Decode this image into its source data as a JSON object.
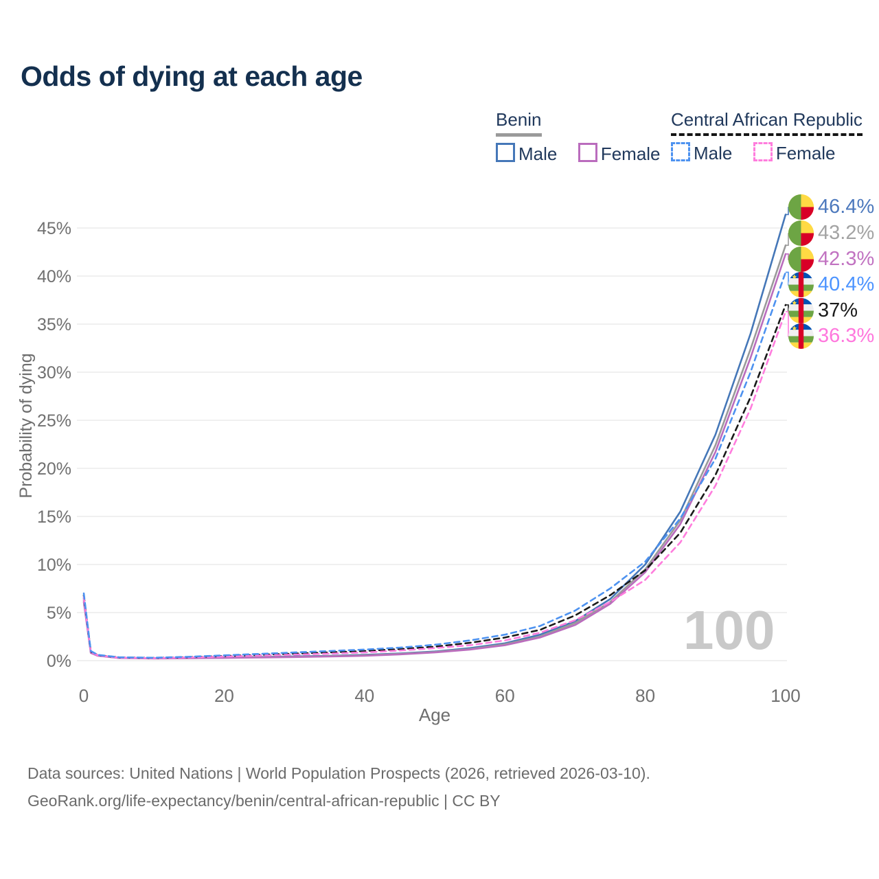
{
  "title": "Odds of dying at each age",
  "legend": {
    "groups": [
      {
        "label": "Benin",
        "underline_style": "solid",
        "underline_color": "#9a9a9a",
        "items": [
          {
            "label": "Male",
            "color": "#4577b8",
            "dashed": false
          },
          {
            "label": "Female",
            "color": "#ba6cbd",
            "dashed": false
          }
        ]
      },
      {
        "label": "Central African Republic",
        "underline_style": "dashed",
        "underline_color": "#151515",
        "items": [
          {
            "label": "Male",
            "color": "#4d92f0",
            "dashed": true
          },
          {
            "label": "Female",
            "color": "#ff7ddd",
            "dashed": true
          }
        ]
      }
    ]
  },
  "end_labels": [
    {
      "value": "46.4%",
      "color": "#4d79bd",
      "flag": "benin-flag-icon"
    },
    {
      "value": "43.2%",
      "color": "#a3a3a3",
      "flag": "benin-flag-icon"
    },
    {
      "value": "42.3%",
      "color": "#c172c1",
      "flag": "benin-flag-icon"
    },
    {
      "value": "40.4%",
      "color": "#4d94ff",
      "flag": "car-flag-icon"
    },
    {
      "value": "37%",
      "color": "#1a1a1a",
      "flag": "car-flag-icon"
    },
    {
      "value": "36.3%",
      "color": "#ff77dd",
      "flag": "car-flag-icon"
    }
  ],
  "watermark": "100",
  "footer": {
    "line1": "Data sources: United Nations | World Population Prospects (2026, retrieved 2026-03-10).",
    "line2": "GeoRank.org/life-expectancy/benin/central-african-republic | CC BY"
  },
  "flag_colors": {
    "green": "#6da544",
    "yellow": "#ffda44",
    "red": "#d80027",
    "blue": "#0052b4",
    "white": "#f0f0f0"
  },
  "chart_data": {
    "type": "line",
    "title": "Odds of dying at each age",
    "xlabel": "Age",
    "ylabel": "Probability of dying",
    "xlim": [
      0,
      100
    ],
    "ylim": [
      0,
      48
    ],
    "grid": "horizontal-only",
    "x_ticks": [
      0,
      20,
      40,
      60,
      80,
      100
    ],
    "x_tick_labels": [
      "0",
      "20",
      "40",
      "60",
      "80",
      "100"
    ],
    "y_ticks": [
      0,
      5,
      10,
      15,
      20,
      25,
      30,
      35,
      40,
      45
    ],
    "y_tick_labels": [
      "0%",
      "5%",
      "10%",
      "15%",
      "20%",
      "25%",
      "30%",
      "35%",
      "40%",
      "45%"
    ],
    "x": [
      0,
      1,
      2,
      5,
      10,
      15,
      20,
      25,
      30,
      35,
      40,
      45,
      50,
      55,
      60,
      65,
      70,
      75,
      80,
      85,
      90,
      95,
      100
    ],
    "series": [
      {
        "name": "Benin Male",
        "color": "#4577b8",
        "dashed": false,
        "end_label": "46.4%",
        "values": [
          6.5,
          0.9,
          0.55,
          0.3,
          0.25,
          0.28,
          0.33,
          0.38,
          0.44,
          0.5,
          0.6,
          0.75,
          0.95,
          1.3,
          1.8,
          2.7,
          4.1,
          6.4,
          10.0,
          15.5,
          23.5,
          34.0,
          46.4
        ]
      },
      {
        "name": "Benin Both sexes",
        "color": "#9a9a9a",
        "dashed": false,
        "end_label": "43.2%",
        "values": [
          6.3,
          0.85,
          0.52,
          0.28,
          0.24,
          0.26,
          0.3,
          0.35,
          0.4,
          0.46,
          0.55,
          0.7,
          0.9,
          1.2,
          1.7,
          2.5,
          3.9,
          6.1,
          9.5,
          14.6,
          22.4,
          32.4,
          43.2
        ]
      },
      {
        "name": "Benin Female",
        "color": "#ba6cbd",
        "dashed": false,
        "end_label": "42.3%",
        "values": [
          6.1,
          0.8,
          0.5,
          0.27,
          0.22,
          0.25,
          0.28,
          0.32,
          0.37,
          0.43,
          0.5,
          0.65,
          0.85,
          1.15,
          1.6,
          2.4,
          3.7,
          5.9,
          9.2,
          14.2,
          21.7,
          31.5,
          42.3
        ]
      },
      {
        "name": "Central African Republic Male",
        "color": "#4d92f0",
        "dashed": true,
        "end_label": "40.4%",
        "values": [
          7.0,
          1.0,
          0.6,
          0.35,
          0.3,
          0.4,
          0.55,
          0.7,
          0.85,
          1.0,
          1.15,
          1.35,
          1.65,
          2.1,
          2.7,
          3.6,
          5.2,
          7.5,
          10.3,
          14.8,
          21.0,
          30.0,
          40.4
        ]
      },
      {
        "name": "Central African Republic Both sexes",
        "color": "#1a1a1a",
        "dashed": true,
        "end_label": "37%",
        "values": [
          6.8,
          0.95,
          0.58,
          0.33,
          0.28,
          0.36,
          0.48,
          0.6,
          0.73,
          0.86,
          1.0,
          1.2,
          1.45,
          1.85,
          2.4,
          3.2,
          4.7,
          6.8,
          9.4,
          13.3,
          19.3,
          27.4,
          37.0
        ]
      },
      {
        "name": "Central African Republic Female",
        "color": "#ff7ddd",
        "dashed": true,
        "end_label": "36.3%",
        "values": [
          6.6,
          0.9,
          0.55,
          0.31,
          0.26,
          0.33,
          0.42,
          0.52,
          0.62,
          0.73,
          0.85,
          1.05,
          1.3,
          1.6,
          2.1,
          2.9,
          4.2,
          6.1,
          8.4,
          12.3,
          18.2,
          26.2,
          36.3
        ]
      }
    ]
  }
}
